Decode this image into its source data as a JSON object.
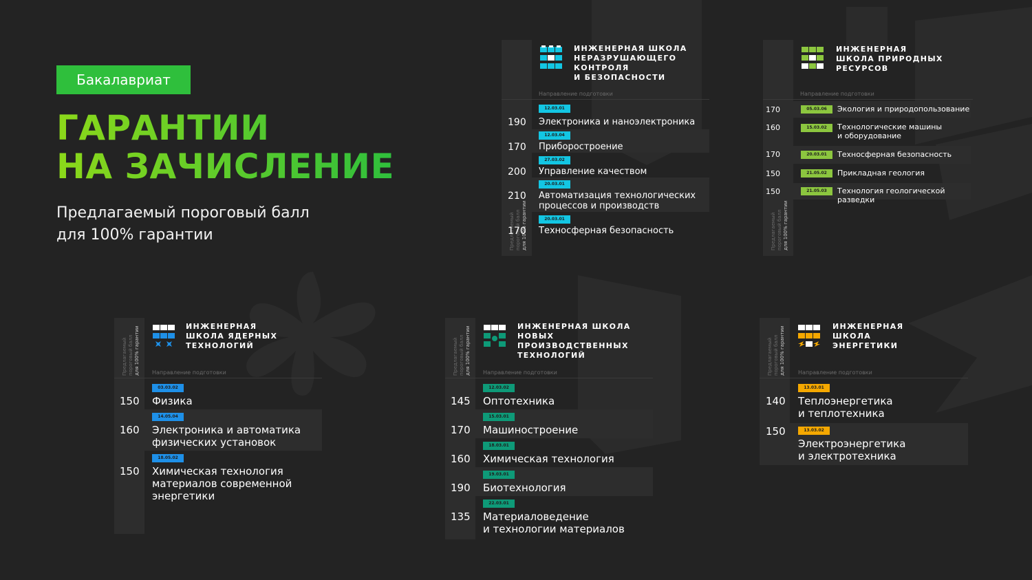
{
  "badge": "Бакалавриат",
  "title_line1": "ГАРАНТИИ",
  "title_line2": "НА ЗАЧИСЛЕНИЕ",
  "subtitle_line1": "Предлагаемый пороговый балл",
  "subtitle_line2": "для 100% гарантии",
  "side_label_line1": "Предлагаемый",
  "side_label_line2": "пороговый балл",
  "side_label_line3": "для 100% гарантии",
  "direction_label": "Направление подготовки",
  "colors": {
    "green": "#2fbf3c",
    "cyan": "#13c6e3",
    "lime": "#8cc63f",
    "blue": "#1e90e8",
    "teal": "#0e9a78",
    "orange": "#f5a800"
  },
  "schools": {
    "ndt": {
      "name1": "ИНЖЕНЕРНАЯ ШКОЛА",
      "name2": "НЕРАЗРУШАЮЩЕГО КОНТРОЛЯ",
      "name3": "И БЕЗОПАСНОСТИ",
      "items": [
        {
          "score": "190",
          "code": "12.03.01",
          "l1": "Электроника и наноэлектроника",
          "l2": ""
        },
        {
          "score": "170",
          "code": "12.03.04",
          "l1": "Приборостроение",
          "l2": ""
        },
        {
          "score": "200",
          "code": "27.03.02",
          "l1": "Управление качеством",
          "l2": ""
        },
        {
          "score": "210",
          "code": "20.03.01",
          "l1": "Автоматизация технологических",
          "l2": "процессов и производств"
        },
        {
          "score": "170",
          "code": "20.03.01",
          "l1": "Техносферная безопасность",
          "l2": ""
        }
      ]
    },
    "nature": {
      "name1": "ИНЖЕНЕРНАЯ",
      "name2": "ШКОЛА ПРИРОДНЫХ",
      "name3": "РЕСУРСОВ",
      "items": [
        {
          "score": "170",
          "code": "05.03.06",
          "l1": "Экология и природопользование",
          "l2": ""
        },
        {
          "score": "160",
          "code": "15.03.02",
          "l1": "Технологические машины",
          "l2": "и оборудование"
        },
        {
          "score": "170",
          "code": "20.03.01",
          "l1": "Техносферная безопасность",
          "l2": ""
        },
        {
          "score": "150",
          "code": "21.05.02",
          "l1": "Прикладная геология",
          "l2": ""
        },
        {
          "score": "150",
          "code": "21.05.03",
          "l1": "Технология геологической разведки",
          "l2": ""
        }
      ]
    },
    "nuclear": {
      "name1": "ИНЖЕНЕРНАЯ",
      "name2": "ШКОЛА ЯДЕРНЫХ",
      "name3": "ТЕХНОЛОГИЙ",
      "items": [
        {
          "score": "150",
          "code": "03.03.02",
          "l1": "Физика",
          "l2": "",
          "l3": ""
        },
        {
          "score": "160",
          "code": "14.05.04",
          "l1": "Электроника и автоматика",
          "l2": "физических установок",
          "l3": ""
        },
        {
          "score": "150",
          "code": "18.05.02",
          "l1": "Химическая технология",
          "l2": "материалов современной",
          "l3": "энергетики"
        }
      ]
    },
    "production": {
      "name1": "ИНЖЕНЕРНАЯ ШКОЛА",
      "name2": "НОВЫХ ПРОИЗВОДСТВЕННЫХ",
      "name3": "ТЕХНОЛОГИЙ",
      "items": [
        {
          "score": "145",
          "code": "12.03.02",
          "l1": "Оптотехника",
          "l2": ""
        },
        {
          "score": "170",
          "code": "15.03.01",
          "l1": "Машиностроение",
          "l2": ""
        },
        {
          "score": "160",
          "code": "18.03.01",
          "l1": "Химическая технология",
          "l2": ""
        },
        {
          "score": "190",
          "code": "19.03.01",
          "l1": "Биотехнология",
          "l2": ""
        },
        {
          "score": "135",
          "code": "22.03.01",
          "l1": "Материаловедение",
          "l2": "и технологии материалов"
        }
      ]
    },
    "energy": {
      "name1": "ИНЖЕНЕРНАЯ",
      "name2": "ШКОЛА",
      "name3": "ЭНЕРГЕТИКИ",
      "items": [
        {
          "score": "140",
          "code": "13.03.01",
          "l1": "Теплоэнергетика",
          "l2": "и теплотехника"
        },
        {
          "score": "150",
          "code": "13.03.02",
          "l1": "Электроэнергетика",
          "l2": "и электротехника"
        }
      ]
    }
  }
}
